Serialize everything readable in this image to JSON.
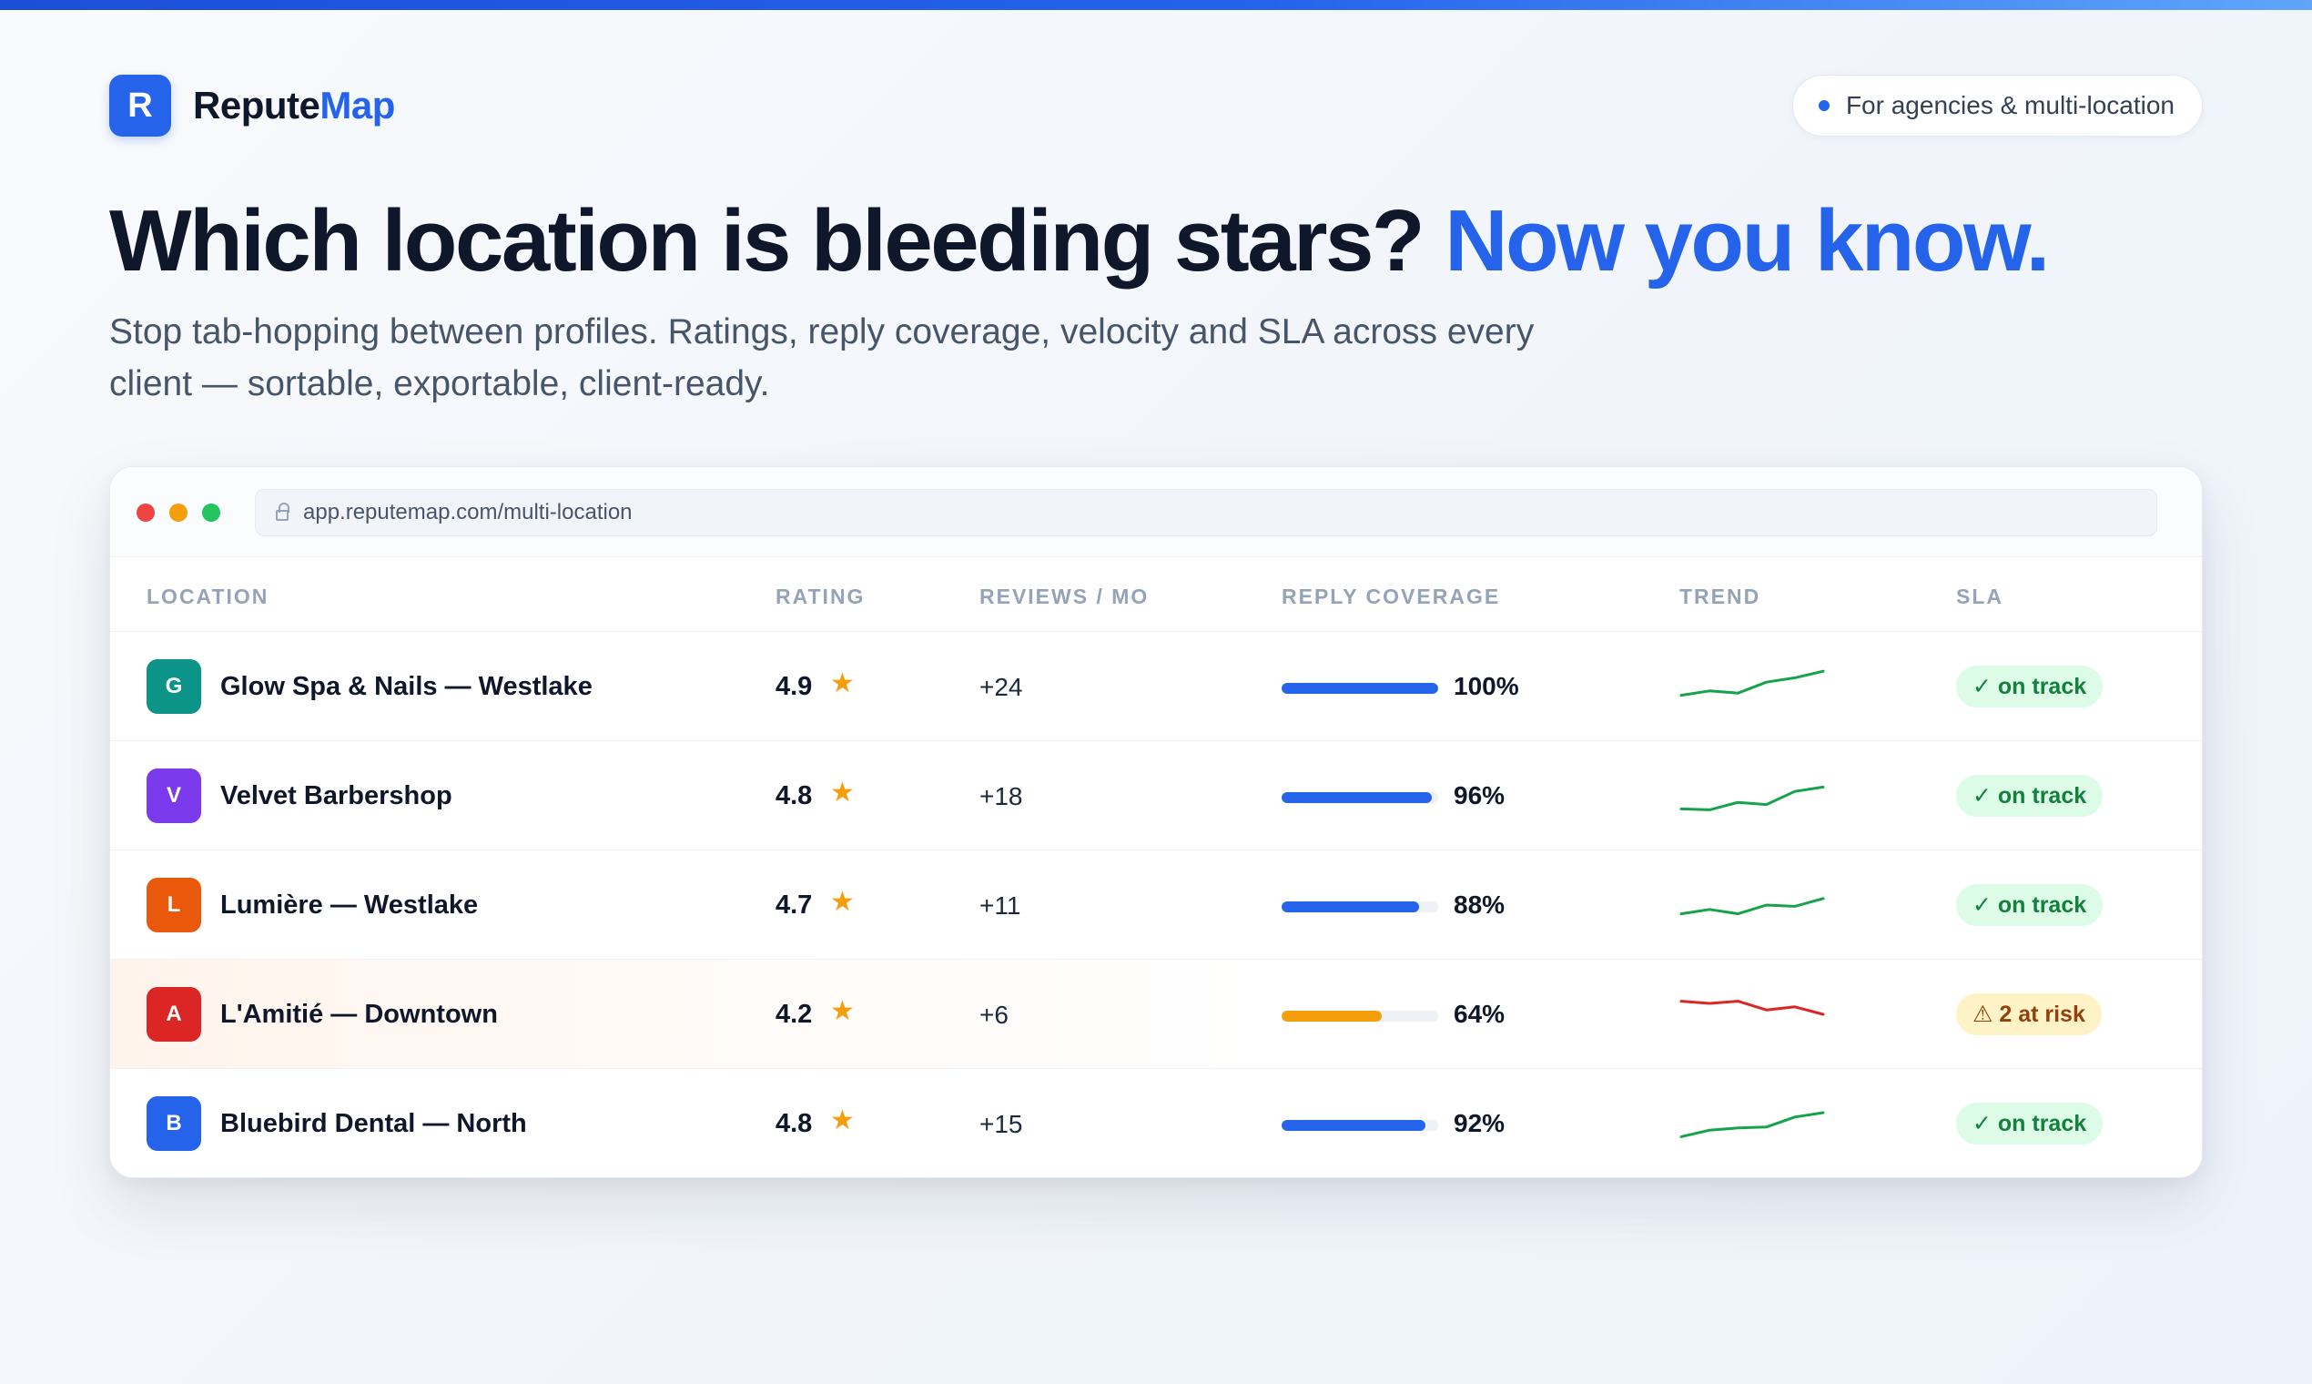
{
  "brand": {
    "logo_letter": "R",
    "name_bold": "Repute",
    "name_accent": "Map"
  },
  "tagline_pill": "For agencies & multi-location",
  "headline": {
    "part1": "Which location is bleeding stars?",
    "part2": "Now you know."
  },
  "subhead": "Stop tab-hopping between profiles. Ratings, reply coverage, velocity and SLA across every client — sortable, exportable, client-ready.",
  "browser": {
    "url": "app.reputemap.com/multi-location"
  },
  "table": {
    "columns": {
      "location": "LOCATION",
      "rating": "RATING",
      "reviews": "REVIEWS / MO",
      "coverage": "REPLY COVERAGE",
      "trend": "TREND",
      "sla": "SLA"
    },
    "rows": [
      {
        "initial": "G",
        "avatar_color": "#0d9488",
        "name": "Glow Spa & Nails — Westlake",
        "rating": "4.9",
        "reviews": "+24",
        "coverage": 100,
        "coverage_label": "100%",
        "bar_color": "#2563eb",
        "trend": [
          3,
          4,
          3.5,
          6,
          7,
          8.5
        ],
        "trend_color": "#16a34a",
        "sla": "✓ on track",
        "sla_status": "ok"
      },
      {
        "initial": "V",
        "avatar_color": "#7c3aed",
        "name": "Velvet Barbershop",
        "rating": "4.8",
        "reviews": "+18",
        "coverage": 96,
        "coverage_label": "96%",
        "bar_color": "#2563eb",
        "trend": [
          2,
          1.8,
          3.5,
          3,
          6,
          7
        ],
        "trend_color": "#16a34a",
        "sla": "✓ on track",
        "sla_status": "ok"
      },
      {
        "initial": "L",
        "avatar_color": "#ea580c",
        "name": "Lumière — Westlake",
        "rating": "4.7",
        "reviews": "+11",
        "coverage": 88,
        "coverage_label": "88%",
        "bar_color": "#2563eb",
        "trend": [
          3,
          4,
          3,
          5,
          4.7,
          6.5
        ],
        "trend_color": "#16a34a",
        "sla": "✓ on track",
        "sla_status": "ok"
      },
      {
        "initial": "A",
        "avatar_color": "#dc2626",
        "name": "L'Amitié — Downtown",
        "rating": "4.2",
        "reviews": "+6",
        "coverage": 64,
        "coverage_label": "64%",
        "bar_color": "#f59e0b",
        "trend": [
          8,
          7.5,
          8,
          6,
          6.7,
          5
        ],
        "trend_color": "#dc2626",
        "sla": "⚠ 2 at risk",
        "sla_status": "risk"
      },
      {
        "initial": "B",
        "avatar_color": "#2563eb",
        "name": "Bluebird Dental — North",
        "rating": "4.8",
        "reviews": "+15",
        "coverage": 92,
        "coverage_label": "92%",
        "bar_color": "#2563eb",
        "trend": [
          2,
          3.5,
          4,
          4.2,
          6.5,
          7.5
        ],
        "trend_color": "#16a34a",
        "sla": "✓ on track",
        "sla_status": "ok"
      }
    ]
  },
  "icons": {
    "star": "star-icon",
    "lock": "lock-icon"
  }
}
